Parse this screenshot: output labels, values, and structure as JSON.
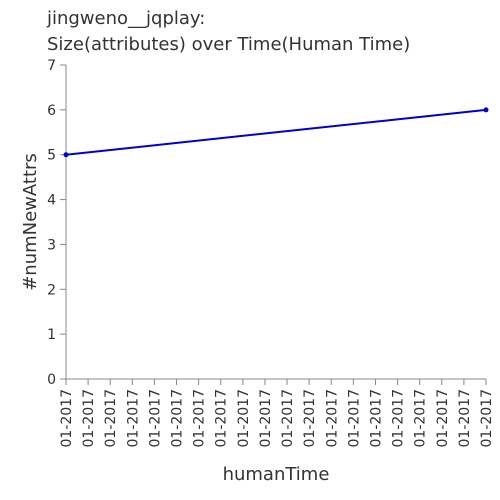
{
  "chart_data": {
    "type": "line",
    "title": [
      "jingweno__jqplay:",
      "Size(attributes) over Time(Human Time)"
    ],
    "xlabel": "humanTime",
    "ylabel": "#numNewAttrs",
    "x_tick_labels": [
      "01-2017",
      "01-2017",
      "01-2017",
      "01-2017",
      "01-2017",
      "01-2017",
      "01-2017",
      "01-2017",
      "01-2017",
      "01-2017",
      "01-2017",
      "01-2017",
      "01-2017",
      "01-2017",
      "01-2017",
      "01-2017",
      "01-2017",
      "01-2017",
      "01-2017",
      "01-2017"
    ],
    "ylim": [
      0,
      7
    ],
    "y_ticks": [
      0,
      1,
      2,
      3,
      4,
      5,
      6,
      7
    ],
    "grid": false,
    "series": [
      {
        "name": "numNewAttrs",
        "color": "#0000cc",
        "x": [
          0,
          1
        ],
        "values": [
          5,
          6
        ]
      }
    ]
  }
}
